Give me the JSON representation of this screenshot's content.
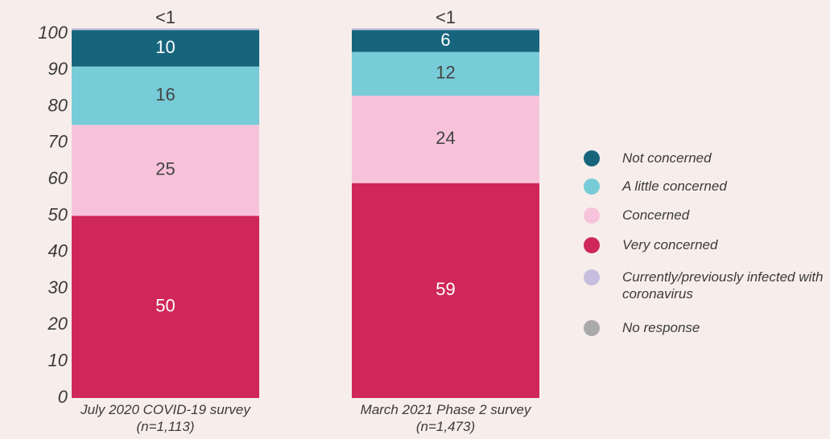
{
  "chart_data": {
    "type": "stacked_bar",
    "categories": [
      "July 2020 COVID-19 survey (n=1,113)",
      "March 2021 Phase 2 survey (n=1,473)"
    ],
    "series": [
      {
        "name": "Very concerned",
        "color": "#cf2758",
        "values": [
          50,
          59
        ]
      },
      {
        "name": "Concerned",
        "color": "#f7c3da",
        "values": [
          25,
          24
        ]
      },
      {
        "name": "A little concerned",
        "color": "#78ccd8",
        "values": [
          16,
          12
        ]
      },
      {
        "name": "Not concerned",
        "color": "#17657d",
        "values": [
          10,
          6
        ]
      },
      {
        "name": "Currently/previously infected with coronavirus",
        "color": "#c5bede",
        "values": [
          0.5,
          0.5
        ],
        "value_labels": [
          "<1",
          "<1"
        ]
      },
      {
        "name": "No response",
        "color": "#aaaaaa",
        "values": [
          null,
          null
        ]
      }
    ],
    "legend_order": [
      3,
      2,
      1,
      0,
      4,
      5
    ],
    "ylim": [
      0,
      102
    ],
    "yticks": [
      0,
      10,
      20,
      30,
      40,
      50,
      60,
      70,
      80,
      90,
      100
    ],
    "grid": false
  }
}
